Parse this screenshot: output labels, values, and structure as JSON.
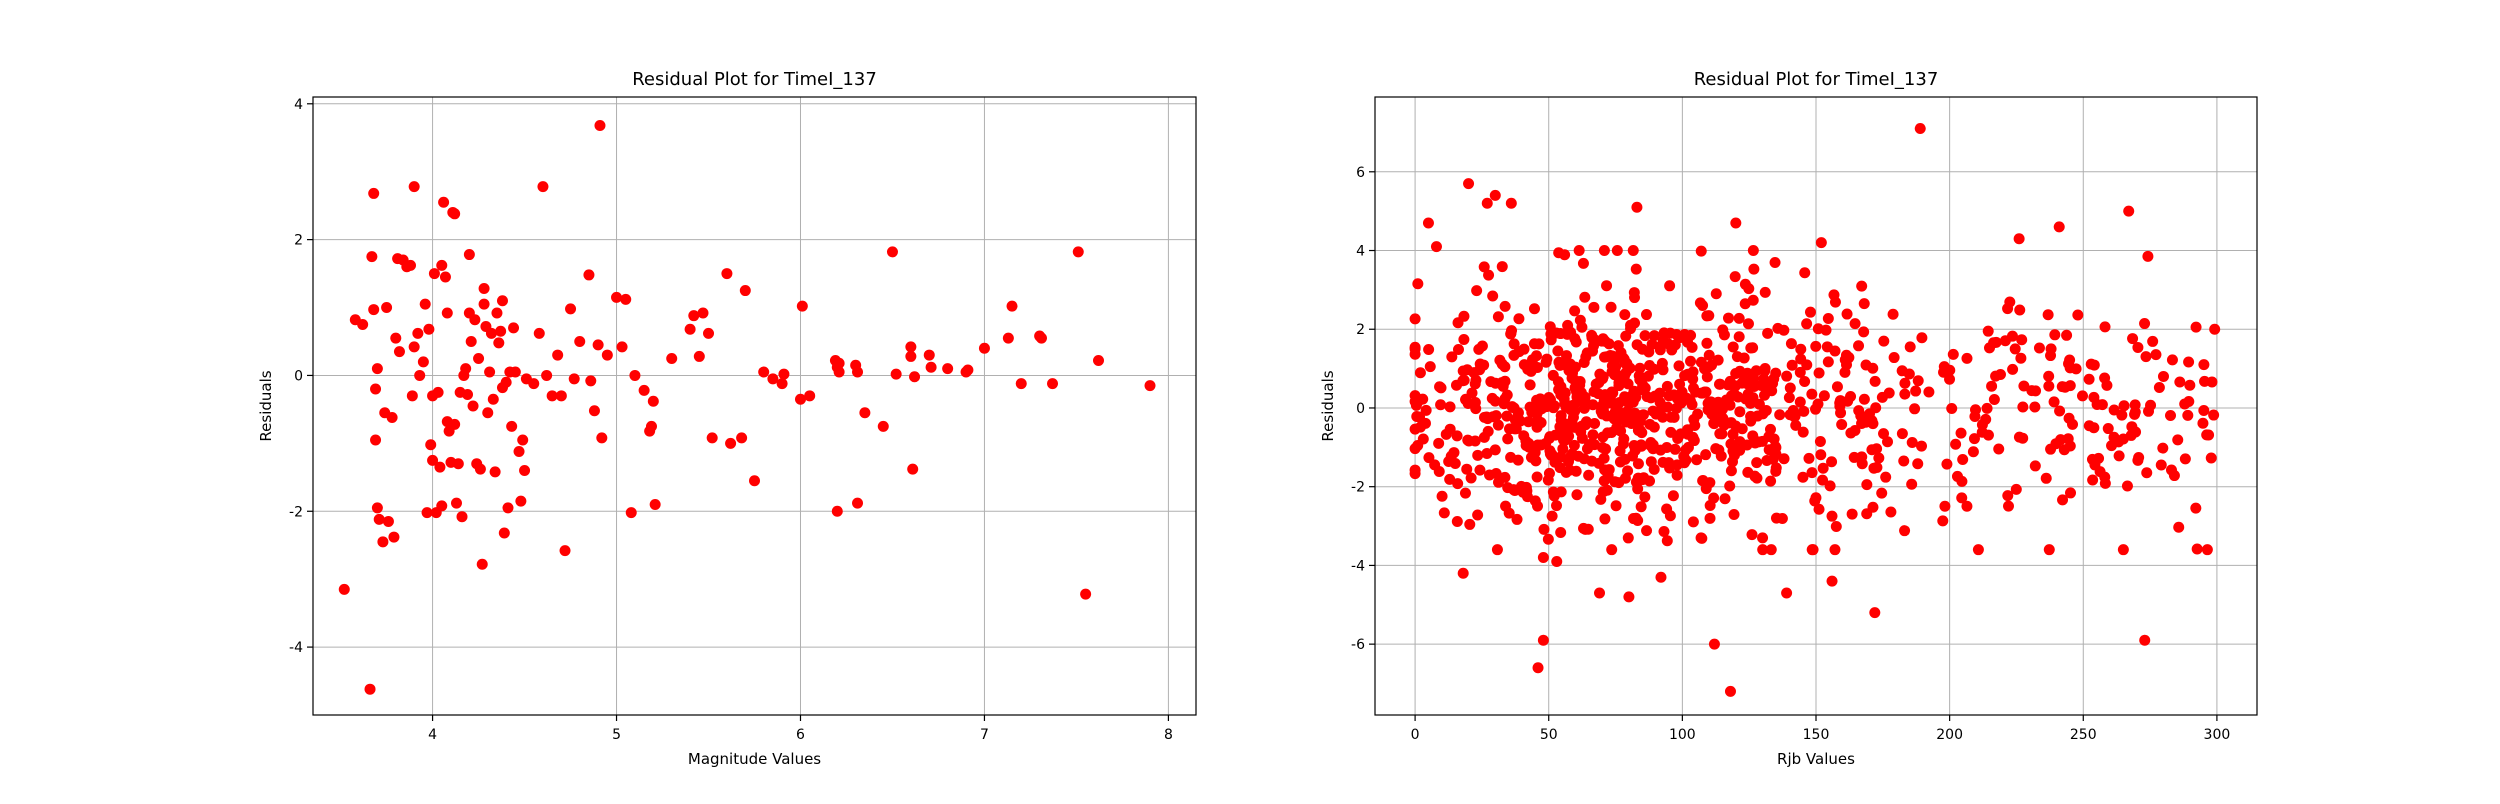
{
  "chart_data": [
    {
      "type": "scatter",
      "title": "Residual Plot for TimeI_137",
      "xlabel": "Magnitude Values",
      "ylabel": "Residuals",
      "xlim": [
        3.35,
        8.15
      ],
      "ylim": [
        -5.0,
        4.1
      ],
      "xticks": [
        4,
        5,
        6,
        7,
        8
      ],
      "yticks": [
        -4,
        -2,
        0,
        2,
        4
      ],
      "grid": true,
      "marker_color": "#ff0000",
      "points": [
        [
          3.52,
          -3.15
        ],
        [
          3.58,
          0.82
        ],
        [
          3.62,
          0.75
        ],
        [
          3.66,
          -4.62
        ],
        [
          3.67,
          1.75
        ],
        [
          3.68,
          2.68
        ],
        [
          3.68,
          0.97
        ],
        [
          3.69,
          -0.2
        ],
        [
          3.69,
          -0.95
        ],
        [
          3.7,
          0.1
        ],
        [
          3.7,
          -1.95
        ],
        [
          3.71,
          -2.12
        ],
        [
          3.73,
          -2.45
        ],
        [
          3.74,
          -0.55
        ],
        [
          3.75,
          1.0
        ],
        [
          3.76,
          -2.15
        ],
        [
          3.78,
          -0.62
        ],
        [
          3.79,
          -2.38
        ],
        [
          3.8,
          0.55
        ],
        [
          3.81,
          1.72
        ],
        [
          3.82,
          0.35
        ],
        [
          3.84,
          1.7
        ],
        [
          3.86,
          1.6
        ],
        [
          3.88,
          1.62
        ],
        [
          3.89,
          -0.3
        ],
        [
          3.9,
          2.78
        ],
        [
          3.9,
          0.42
        ],
        [
          3.92,
          0.62
        ],
        [
          3.93,
          0.0
        ],
        [
          3.95,
          0.2
        ],
        [
          3.96,
          1.05
        ],
        [
          3.97,
          -2.02
        ],
        [
          3.98,
          0.68
        ],
        [
          3.99,
          -1.02
        ],
        [
          4.0,
          -1.25
        ],
        [
          4.0,
          -0.3
        ],
        [
          4.01,
          1.5
        ],
        [
          4.02,
          -2.02
        ],
        [
          4.03,
          -0.25
        ],
        [
          4.04,
          -1.35
        ],
        [
          4.05,
          1.62
        ],
        [
          4.05,
          -1.92
        ],
        [
          4.06,
          2.55
        ],
        [
          4.07,
          1.45
        ],
        [
          4.08,
          0.92
        ],
        [
          4.08,
          -0.68
        ],
        [
          4.09,
          -0.82
        ],
        [
          4.1,
          -1.28
        ],
        [
          4.11,
          2.4
        ],
        [
          4.12,
          2.38
        ],
        [
          4.12,
          -0.72
        ],
        [
          4.13,
          -1.88
        ],
        [
          4.14,
          -1.3
        ],
        [
          4.15,
          -0.25
        ],
        [
          4.16,
          -2.08
        ],
        [
          4.17,
          0.0
        ],
        [
          4.18,
          0.1
        ],
        [
          4.19,
          -0.28
        ],
        [
          4.2,
          1.78
        ],
        [
          4.2,
          0.92
        ],
        [
          4.21,
          0.5
        ],
        [
          4.22,
          -0.45
        ],
        [
          4.23,
          0.82
        ],
        [
          4.24,
          -1.3
        ],
        [
          4.25,
          0.25
        ],
        [
          4.26,
          -1.38
        ],
        [
          4.27,
          -2.78
        ],
        [
          4.28,
          1.28
        ],
        [
          4.28,
          1.05
        ],
        [
          4.29,
          0.72
        ],
        [
          4.3,
          -0.55
        ],
        [
          4.31,
          0.05
        ],
        [
          4.32,
          0.62
        ],
        [
          4.33,
          -0.35
        ],
        [
          4.34,
          -1.42
        ],
        [
          4.35,
          0.92
        ],
        [
          4.36,
          0.48
        ],
        [
          4.37,
          0.65
        ],
        [
          4.38,
          1.1
        ],
        [
          4.38,
          -0.18
        ],
        [
          4.39,
          -2.32
        ],
        [
          4.4,
          -0.1
        ],
        [
          4.41,
          -1.95
        ],
        [
          4.42,
          0.05
        ],
        [
          4.43,
          -0.75
        ],
        [
          4.44,
          0.7
        ],
        [
          4.45,
          0.05
        ],
        [
          4.47,
          -1.12
        ],
        [
          4.48,
          -1.85
        ],
        [
          4.49,
          -0.95
        ],
        [
          4.5,
          -1.4
        ],
        [
          4.51,
          -0.05
        ],
        [
          4.55,
          -0.12
        ],
        [
          4.58,
          0.62
        ],
        [
          4.6,
          2.78
        ],
        [
          4.62,
          0.0
        ],
        [
          4.65,
          -0.3
        ],
        [
          4.68,
          0.3
        ],
        [
          4.7,
          -0.3
        ],
        [
          4.72,
          -2.58
        ],
        [
          4.75,
          0.98
        ],
        [
          4.77,
          -0.05
        ],
        [
          4.8,
          0.5
        ],
        [
          4.85,
          1.48
        ],
        [
          4.86,
          -0.08
        ],
        [
          4.88,
          -0.52
        ],
        [
          4.9,
          0.45
        ],
        [
          4.91,
          3.68
        ],
        [
          4.92,
          -0.92
        ],
        [
          4.95,
          0.3
        ],
        [
          5.0,
          1.15
        ],
        [
          5.03,
          0.42
        ],
        [
          5.05,
          1.12
        ],
        [
          5.08,
          -2.02
        ],
        [
          5.1,
          0.0
        ],
        [
          5.15,
          -0.22
        ],
        [
          5.18,
          -0.82
        ],
        [
          5.19,
          -0.75
        ],
        [
          5.2,
          -0.38
        ],
        [
          5.21,
          -1.9
        ],
        [
          5.3,
          0.25
        ],
        [
          5.4,
          0.68
        ],
        [
          5.42,
          0.88
        ],
        [
          5.45,
          0.28
        ],
        [
          5.47,
          0.92
        ],
        [
          5.5,
          0.62
        ],
        [
          5.52,
          -0.92
        ],
        [
          5.6,
          1.5
        ],
        [
          5.62,
          -1.0
        ],
        [
          5.68,
          -0.92
        ],
        [
          5.7,
          1.25
        ],
        [
          5.75,
          -1.55
        ],
        [
          5.8,
          0.05
        ],
        [
          5.85,
          -0.05
        ],
        [
          5.9,
          -0.12
        ],
        [
          5.91,
          0.02
        ],
        [
          6.0,
          -0.35
        ],
        [
          6.01,
          1.02
        ],
        [
          6.05,
          -0.3
        ],
        [
          6.19,
          0.22
        ],
        [
          6.2,
          0.12
        ],
        [
          6.21,
          0.05
        ],
        [
          6.2,
          -2.0
        ],
        [
          6.21,
          0.18
        ],
        [
          6.3,
          0.15
        ],
        [
          6.31,
          0.05
        ],
        [
          6.31,
          -1.88
        ],
        [
          6.35,
          -0.55
        ],
        [
          6.45,
          -0.75
        ],
        [
          6.5,
          1.82
        ],
        [
          6.52,
          0.02
        ],
        [
          6.6,
          0.28
        ],
        [
          6.6,
          0.42
        ],
        [
          6.61,
          -1.38
        ],
        [
          6.62,
          -0.02
        ],
        [
          6.7,
          0.3
        ],
        [
          6.71,
          0.12
        ],
        [
          6.8,
          0.1
        ],
        [
          6.9,
          0.05
        ],
        [
          6.91,
          0.08
        ],
        [
          7.0,
          0.4
        ],
        [
          7.13,
          0.55
        ],
        [
          7.15,
          1.02
        ],
        [
          7.2,
          -0.12
        ],
        [
          7.3,
          0.58
        ],
        [
          7.31,
          0.55
        ],
        [
          7.37,
          -0.12
        ],
        [
          7.51,
          1.82
        ],
        [
          7.55,
          -3.22
        ],
        [
          7.62,
          0.22
        ],
        [
          7.9,
          -0.15
        ]
      ]
    },
    {
      "type": "scatter",
      "title": "Residual Plot for TimeI_137",
      "xlabel": "Rjb Values",
      "ylabel": "Residuals",
      "xlim": [
        -15,
        315
      ],
      "ylim": [
        -7.8,
        7.9
      ],
      "xticks": [
        0,
        50,
        100,
        150,
        200,
        250,
        300
      ],
      "yticks": [
        -6,
        -4,
        -2,
        0,
        2,
        4,
        6
      ],
      "grid": true,
      "marker_color": "#ff0000",
      "highlight_points": [
        [
          5,
          4.7
        ],
        [
          8,
          4.1
        ],
        [
          20,
          5.7
        ],
        [
          27,
          5.2
        ],
        [
          30,
          5.4
        ],
        [
          36,
          5.2
        ],
        [
          83,
          5.1
        ],
        [
          120,
          4.7
        ],
        [
          152,
          4.2
        ],
        [
          189,
          7.1
        ],
        [
          226,
          4.3
        ],
        [
          241,
          4.6
        ],
        [
          267,
          5.0
        ],
        [
          18,
          -4.2
        ],
        [
          48,
          -3.8
        ],
        [
          53,
          -3.9
        ],
        [
          46,
          -6.6
        ],
        [
          48,
          -5.9
        ],
        [
          69,
          -4.7
        ],
        [
          92,
          -4.3
        ],
        [
          112,
          -6.0
        ],
        [
          118,
          -7.2
        ],
        [
          139,
          -4.7
        ],
        [
          156,
          -4.4
        ],
        [
          172,
          -5.2
        ],
        [
          265,
          -3.6
        ],
        [
          273,
          -5.9
        ],
        [
          107,
          -3.3
        ],
        [
          80,
          -4.8
        ],
        [
          130,
          -3.3
        ]
      ],
      "cloud": {
        "n": 1000,
        "x_range": [
          0,
          300
        ],
        "center_x": 80,
        "sd_x": 65,
        "sd_y": 1.45,
        "clip_y": [
          -3.6,
          4.0
        ]
      }
    }
  ]
}
